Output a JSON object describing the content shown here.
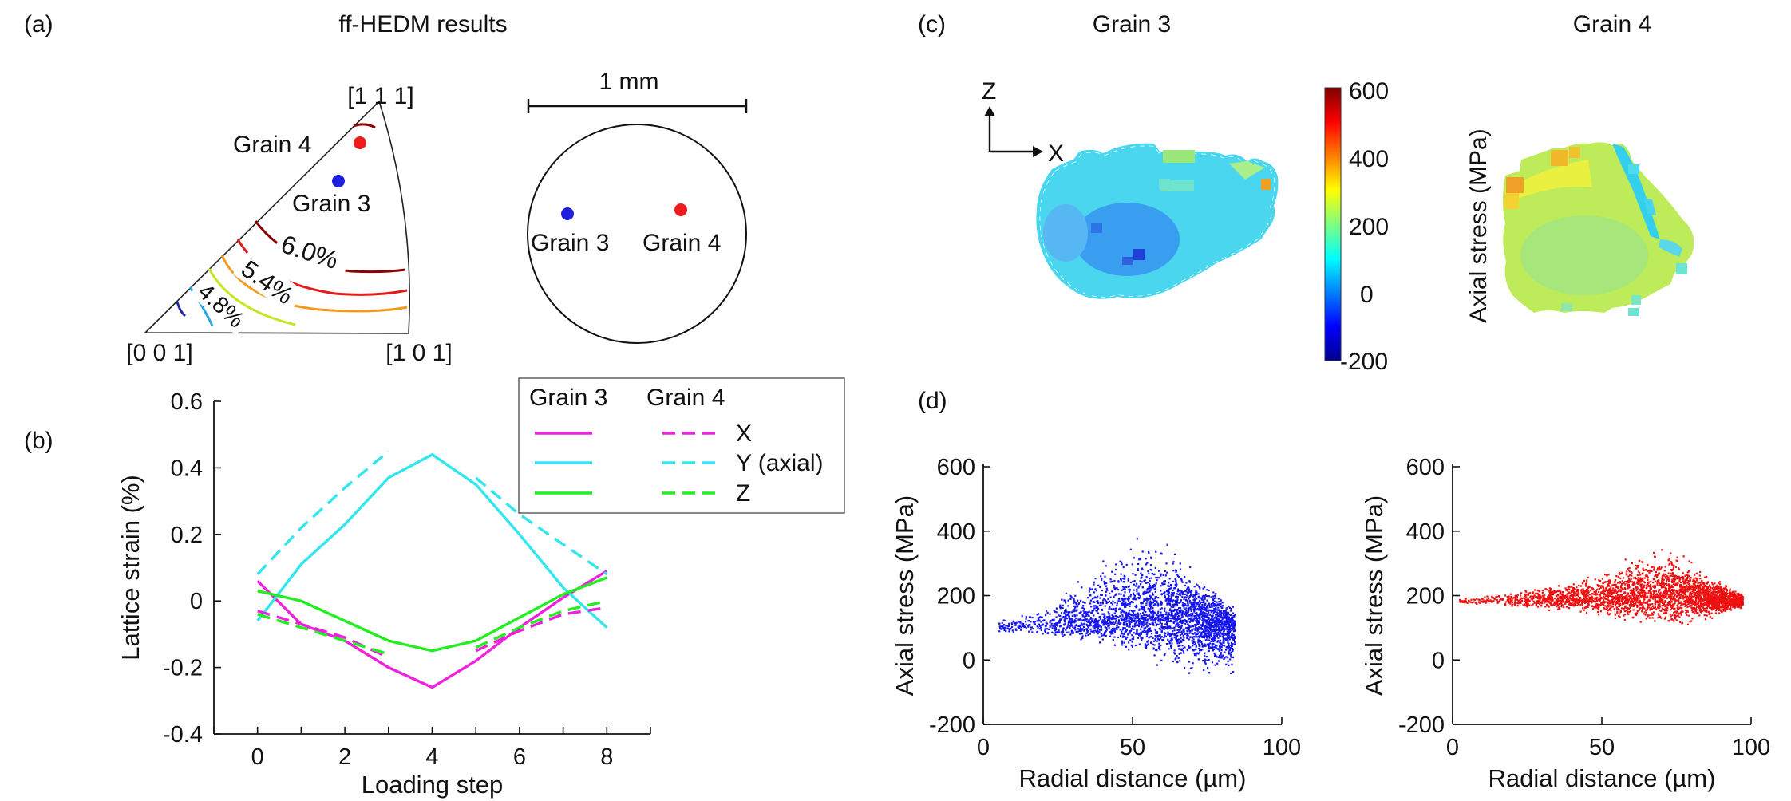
{
  "panels": {
    "a": {
      "label": "(a)",
      "title": "ff-HEDM results",
      "ipf": {
        "corners": [
          "[1 1 1]",
          "[0 0 1]",
          "[1 0 1]"
        ],
        "grain4_label": "Grain 4",
        "grain3_label": "Grain 3",
        "contour_labels": [
          "6.0%",
          "5.4%",
          "4.8%"
        ],
        "grain3_color": "#1f1fe0",
        "grain4_color": "#ee1c1c"
      },
      "sample": {
        "scale_label": "1 mm",
        "grain3_label": "Grain 3",
        "grain4_label": "Grain 4"
      }
    },
    "b": {
      "label": "(b)"
    },
    "c": {
      "label": "(c)",
      "grain3_title": "Grain 3",
      "grain4_title": "Grain 4",
      "axis_z": "Z",
      "axis_x": "X",
      "colorbar": {
        "label": "Axial stress (MPa)",
        "ticks": [
          "600",
          "400",
          "200",
          "0",
          "-200"
        ],
        "min": -200,
        "max": 600
      }
    },
    "d": {
      "label": "(d)"
    }
  },
  "legend": {
    "col_grain3": "Grain 3",
    "col_grain4": "Grain 4",
    "rows": [
      "X",
      "Y (axial)",
      "Z"
    ],
    "colors": [
      "#ee22dd",
      "#33e6ee",
      "#22ee22"
    ]
  },
  "chart_data": [
    {
      "type": "line",
      "panel": "b",
      "xlabel": "Loading step",
      "ylabel": "Lattice strain (%)",
      "xlim": [
        -1,
        9
      ],
      "ylim": [
        -0.4,
        0.6
      ],
      "xticks": [
        "0",
        "2",
        "4",
        "6",
        "8"
      ],
      "yticks": [
        "-0.4",
        "-0.2",
        "0",
        "0.2",
        "0.4",
        "0.6"
      ],
      "series": [
        {
          "name": "Grain 3 X",
          "color": "#ee22dd",
          "dash": false,
          "x": [
            0,
            1,
            2,
            3,
            4,
            5,
            6,
            7,
            8
          ],
          "y": [
            0.06,
            -0.07,
            -0.12,
            -0.2,
            -0.26,
            -0.18,
            -0.08,
            0.01,
            0.09
          ]
        },
        {
          "name": "Grain 3 Y (axial)",
          "color": "#33e6ee",
          "dash": false,
          "x": [
            0,
            1,
            2,
            3,
            4,
            5,
            6,
            7,
            8
          ],
          "y": [
            -0.06,
            0.11,
            0.23,
            0.37,
            0.44,
            0.35,
            0.2,
            0.04,
            -0.08
          ]
        },
        {
          "name": "Grain 3 Z",
          "color": "#22ee22",
          "dash": false,
          "x": [
            0,
            1,
            2,
            3,
            4,
            5,
            6,
            7,
            8
          ],
          "y": [
            0.03,
            0.0,
            -0.06,
            -0.12,
            -0.15,
            -0.12,
            -0.05,
            0.02,
            0.07
          ]
        },
        {
          "name": "Grain 4 X",
          "color": "#ee22dd",
          "dash": true,
          "x": [
            0,
            1,
            2,
            3,
            5,
            6,
            7,
            8
          ],
          "y": [
            -0.03,
            -0.07,
            -0.11,
            -0.17,
            -0.15,
            -0.09,
            -0.04,
            -0.02
          ]
        },
        {
          "name": "Grain 4 Y (axial)",
          "color": "#33e6ee",
          "dash": true,
          "x": [
            0,
            1,
            2,
            3,
            5,
            6,
            7,
            8
          ],
          "y": [
            0.08,
            0.22,
            0.34,
            0.45,
            0.37,
            0.26,
            0.17,
            0.08
          ]
        },
        {
          "name": "Grain 4 Z",
          "color": "#22ee22",
          "dash": true,
          "x": [
            0,
            1,
            2,
            3,
            5,
            6,
            7,
            8
          ],
          "y": [
            -0.04,
            -0.08,
            -0.12,
            -0.16,
            -0.14,
            -0.08,
            -0.03,
            0.0
          ]
        }
      ]
    },
    {
      "type": "scatter",
      "panel": "d-left",
      "grain": "Grain 3",
      "color": "#1515ee",
      "xlabel": "Radial distance (µm)",
      "ylabel": "Axial stress (MPa)",
      "xlim": [
        0,
        100
      ],
      "ylim": [
        -200,
        600
      ],
      "xticks": [
        "0",
        "50",
        "100"
      ],
      "yticks": [
        "-200",
        "0",
        "200",
        "400",
        "600"
      ],
      "envelope": {
        "x": [
          5,
          20,
          30,
          40,
          50,
          55,
          60,
          70,
          80,
          84
        ],
        "center_y": [
          105,
          115,
          125,
          135,
          150,
          150,
          145,
          130,
          115,
          100
        ],
        "low_y": [
          80,
          75,
          55,
          30,
          5,
          -30,
          -40,
          -50,
          -60,
          -75
        ],
        "high_y": [
          130,
          170,
          250,
          330,
          380,
          410,
          400,
          300,
          200,
          180
        ]
      }
    },
    {
      "type": "scatter",
      "panel": "d-right",
      "grain": "Grain 4",
      "color": "#ee1111",
      "xlabel": "Radial distance (µm)",
      "ylabel": "Axial stress (MPa)",
      "xlim": [
        0,
        100
      ],
      "ylim": [
        -200,
        600
      ],
      "xticks": [
        "0",
        "50",
        "100"
      ],
      "yticks": [
        "-200",
        "0",
        "200",
        "400",
        "600"
      ],
      "envelope": {
        "x": [
          2,
          20,
          40,
          55,
          65,
          75,
          85,
          97
        ],
        "center_y": [
          185,
          190,
          195,
          200,
          210,
          205,
          195,
          185
        ],
        "low_y": [
          175,
          165,
          145,
          115,
          100,
          100,
          120,
          160
        ],
        "high_y": [
          195,
          215,
          260,
          300,
          370,
          350,
          280,
          210
        ]
      }
    }
  ]
}
